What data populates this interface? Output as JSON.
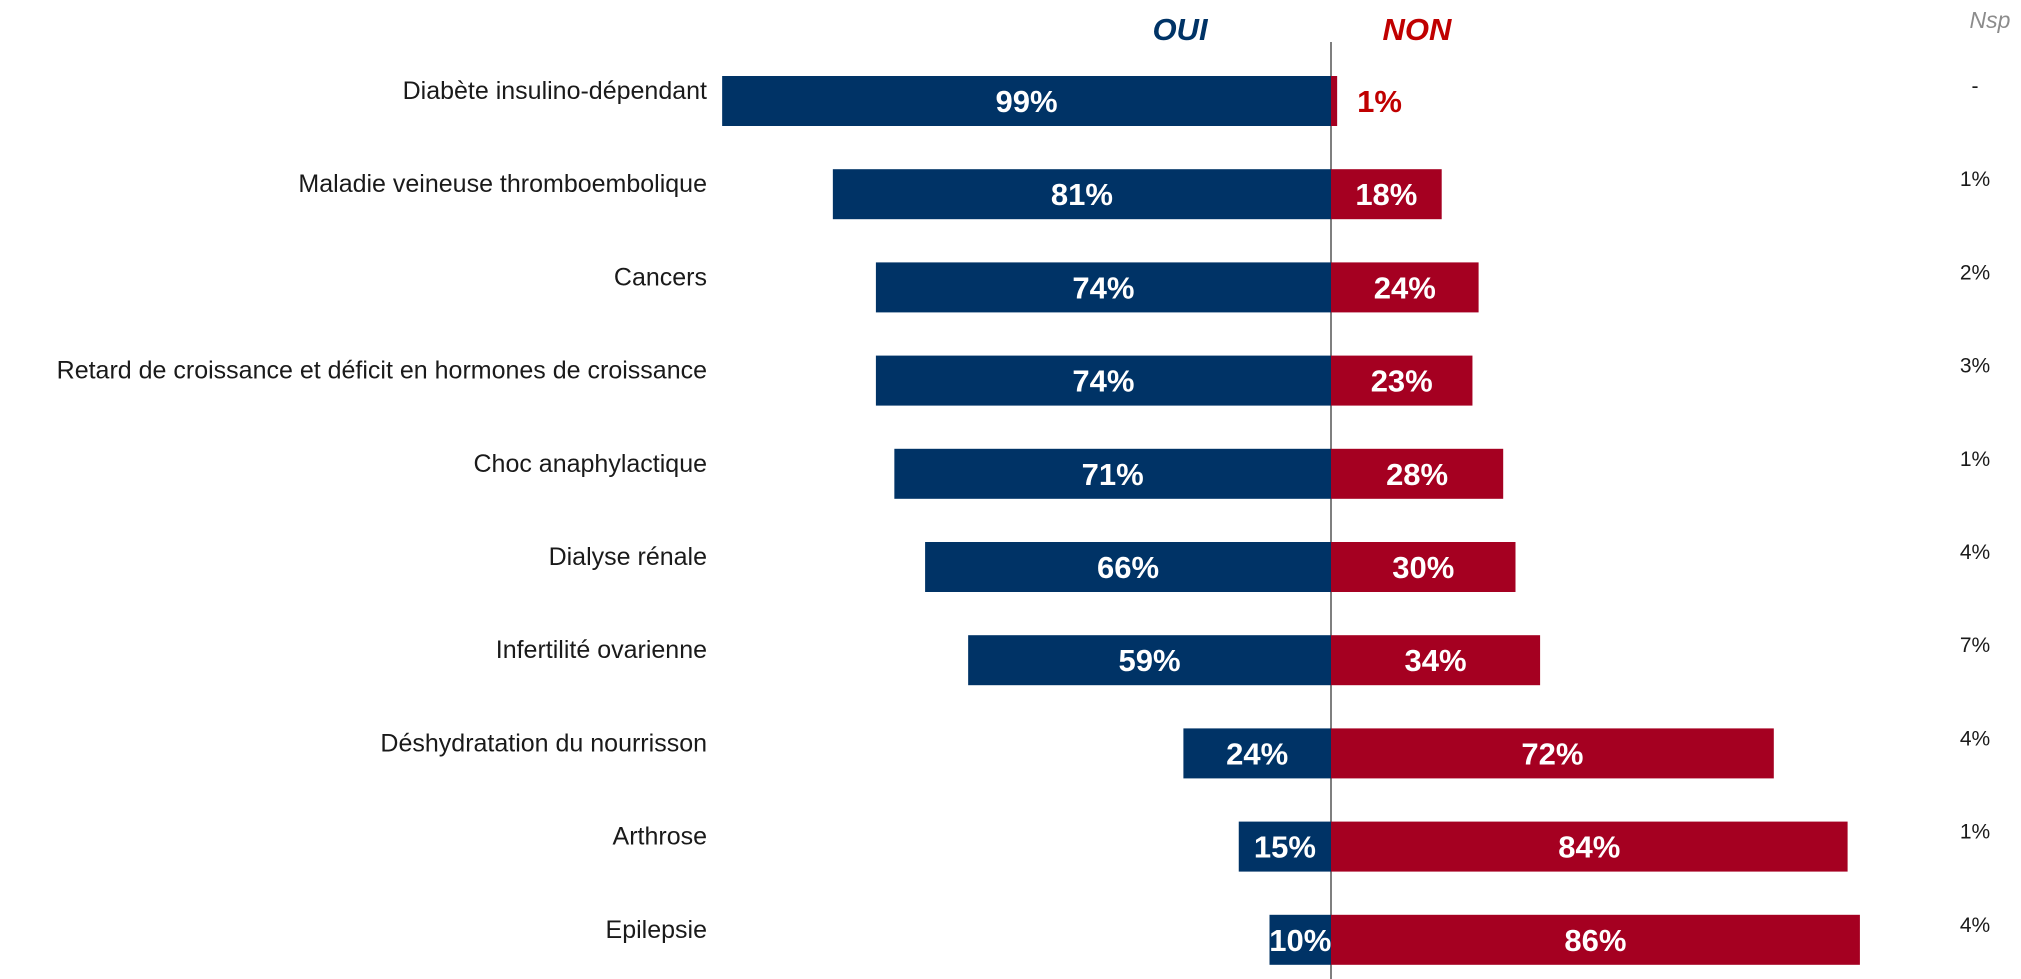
{
  "chart_data": {
    "type": "bar",
    "orientation": "horizontal-diverging",
    "series": [
      {
        "name": "OUI",
        "color": "#003366",
        "values": [
          99,
          81,
          74,
          74,
          71,
          66,
          59,
          24,
          15,
          10
        ],
        "labels": [
          "99%",
          "81%",
          "74%",
          "74%",
          "71%",
          "66%",
          "59%",
          "24%",
          "15%",
          "10%"
        ]
      },
      {
        "name": "NON",
        "color": "#a50021",
        "values": [
          1,
          18,
          24,
          23,
          28,
          30,
          34,
          72,
          84,
          86
        ],
        "labels": [
          "1%",
          "18%",
          "24%",
          "23%",
          "28%",
          "30%",
          "34%",
          "72%",
          "84%",
          "86%"
        ]
      },
      {
        "name": "Nsp",
        "color": "#8c8c8c",
        "values": [
          0,
          1,
          2,
          3,
          1,
          4,
          7,
          4,
          1,
          4
        ],
        "labels": [
          "-",
          "1%",
          "2%",
          "3%",
          "1%",
          "4%",
          "7%",
          "4%",
          "1%",
          "4%"
        ]
      }
    ],
    "categories": [
      "Diabète insulino-dépendant",
      "Maladie veineuse thromboembolique",
      "Cancers",
      "Retard de croissance et déficit en hormones de croissance",
      "Choc anaphylactique",
      "Dialyse rénale",
      "Infertilité ovarienne",
      "Déshydratation du nourrisson",
      "Arthrose",
      "Epilepsie"
    ],
    "headers": {
      "oui": "OUI",
      "non": "NON",
      "nsp": "Nsp"
    },
    "title": "",
    "xlabel": "",
    "ylabel": "",
    "xlim": [
      -100,
      100
    ],
    "grid": false,
    "legend": "top"
  }
}
